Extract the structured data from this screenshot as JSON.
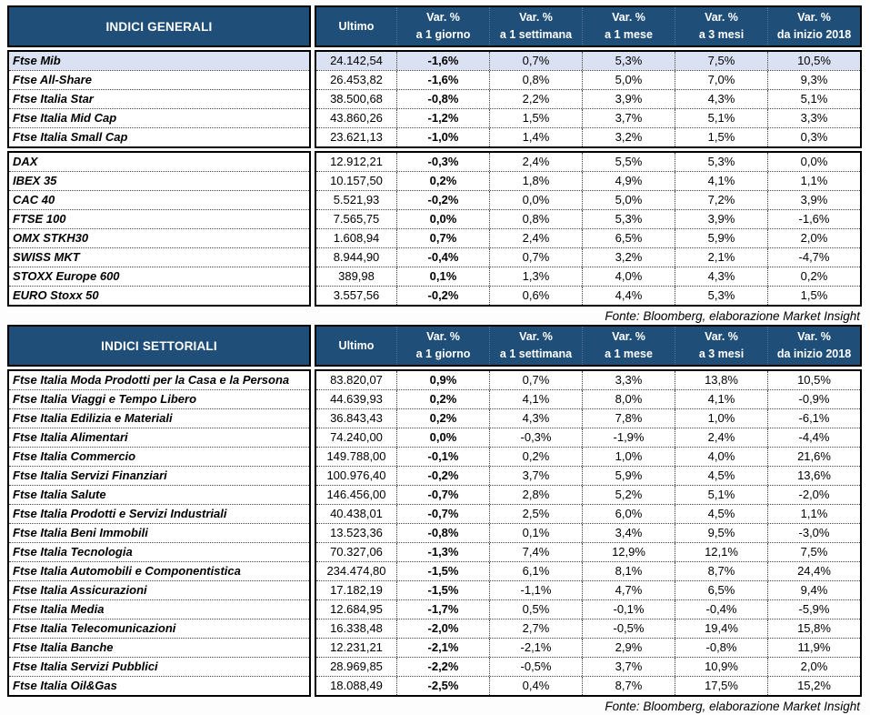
{
  "colors": {
    "header_bg": "#1F4E79",
    "header_text": "#FFFFFF",
    "highlight_row_bg": "#D9E1F2",
    "border": "#000000"
  },
  "tables": [
    {
      "title": "INDICI GENERALI",
      "source": "Fonte: Bloomberg, elaborazione Market Insight",
      "columns": [
        {
          "line1": "Ultimo",
          "line2": ""
        },
        {
          "line1": "Var. %",
          "line2": "a 1 giorno"
        },
        {
          "line1": "Var. %",
          "line2": "a 1 settimana"
        },
        {
          "line1": "Var. %",
          "line2": "a 1 mese"
        },
        {
          "line1": "Var. %",
          "line2": "a 3 mesi"
        },
        {
          "line1": "Var. %",
          "line2": "da inizio 2018"
        }
      ],
      "groups": [
        {
          "rows": [
            {
              "name": "Ftse Mib",
              "highlight": true,
              "values": [
                "24.142,54",
                "-1,6%",
                "0,7%",
                "5,3%",
                "7,5%",
                "10,5%"
              ]
            },
            {
              "name": "Ftse All-Share",
              "highlight": false,
              "values": [
                "26.453,82",
                "-1,6%",
                "0,8%",
                "5,0%",
                "7,0%",
                "9,3%"
              ]
            },
            {
              "name": "Ftse Italia Star",
              "highlight": false,
              "values": [
                "38.500,68",
                "-0,8%",
                "2,2%",
                "3,9%",
                "4,3%",
                "5,1%"
              ]
            },
            {
              "name": "Ftse Italia Mid Cap",
              "highlight": false,
              "values": [
                "43.860,26",
                "-1,2%",
                "1,5%",
                "3,7%",
                "5,1%",
                "3,3%"
              ]
            },
            {
              "name": "Ftse Italia Small Cap",
              "highlight": false,
              "values": [
                "23.621,13",
                "-1,0%",
                "1,4%",
                "3,2%",
                "1,5%",
                "0,3%"
              ]
            }
          ]
        },
        {
          "rows": [
            {
              "name": "DAX",
              "highlight": false,
              "values": [
                "12.912,21",
                "-0,3%",
                "2,4%",
                "5,5%",
                "5,3%",
                "0,0%"
              ]
            },
            {
              "name": "IBEX 35",
              "highlight": false,
              "values": [
                "10.157,50",
                "0,2%",
                "1,8%",
                "4,9%",
                "4,1%",
                "1,1%"
              ]
            },
            {
              "name": "CAC 40",
              "highlight": false,
              "values": [
                "5.521,93",
                "-0,2%",
                "0,0%",
                "5,0%",
                "7,2%",
                "3,9%"
              ]
            },
            {
              "name": "FTSE 100",
              "highlight": false,
              "values": [
                "7.565,75",
                "0,0%",
                "0,8%",
                "5,3%",
                "3,9%",
                "-1,6%"
              ]
            },
            {
              "name": "OMX STKH30",
              "highlight": false,
              "values": [
                "1.608,94",
                "0,7%",
                "2,4%",
                "6,5%",
                "5,9%",
                "2,0%"
              ]
            },
            {
              "name": "SWISS MKT",
              "highlight": false,
              "values": [
                "8.944,90",
                "-0,4%",
                "0,7%",
                "3,2%",
                "2,1%",
                "-4,7%"
              ]
            },
            {
              "name": "STOXX Europe 600",
              "highlight": false,
              "values": [
                "389,98",
                "0,1%",
                "1,3%",
                "4,0%",
                "4,3%",
                "0,2%"
              ]
            },
            {
              "name": "EURO Stoxx 50",
              "highlight": false,
              "values": [
                "3.557,56",
                "-0,2%",
                "0,6%",
                "4,4%",
                "5,3%",
                "1,5%"
              ]
            }
          ]
        }
      ]
    },
    {
      "title": "INDICI SETTORIALI",
      "source": "Fonte: Bloomberg, elaborazione Market Insight",
      "columns": [
        {
          "line1": "Ultimo",
          "line2": ""
        },
        {
          "line1": "Var. %",
          "line2": "a 1 giorno"
        },
        {
          "line1": "Var. %",
          "line2": "a 1 settimana"
        },
        {
          "line1": "Var. %",
          "line2": "a 1 mese"
        },
        {
          "line1": "Var. %",
          "line2": "a 3 mesi"
        },
        {
          "line1": "Var. %",
          "line2": "da inizio 2018"
        }
      ],
      "groups": [
        {
          "rows": [
            {
              "name": "Ftse Italia Moda Prodotti per la Casa e la Persona",
              "highlight": false,
              "values": [
                "83.820,07",
                "0,9%",
                "0,7%",
                "3,3%",
                "13,8%",
                "10,5%"
              ]
            },
            {
              "name": "Ftse Italia Viaggi e Tempo Libero",
              "highlight": false,
              "values": [
                "44.639,93",
                "0,2%",
                "4,1%",
                "8,0%",
                "4,1%",
                "-0,9%"
              ]
            },
            {
              "name": "Ftse Italia Edilizia e Materiali",
              "highlight": false,
              "values": [
                "36.843,43",
                "0,2%",
                "4,3%",
                "7,8%",
                "1,0%",
                "-6,1%"
              ]
            },
            {
              "name": "Ftse Italia Alimentari",
              "highlight": false,
              "values": [
                "74.240,00",
                "0,0%",
                "-0,3%",
                "-1,9%",
                "2,4%",
                "-4,4%"
              ]
            },
            {
              "name": "Ftse Italia Commercio",
              "highlight": false,
              "values": [
                "149.788,00",
                "-0,1%",
                "0,2%",
                "1,0%",
                "4,0%",
                "21,6%"
              ]
            },
            {
              "name": "Ftse Italia Servizi Finanziari",
              "highlight": false,
              "values": [
                "100.976,40",
                "-0,2%",
                "3,7%",
                "5,9%",
                "4,5%",
                "13,6%"
              ]
            },
            {
              "name": "Ftse Italia Salute",
              "highlight": false,
              "values": [
                "146.456,00",
                "-0,7%",
                "2,8%",
                "5,2%",
                "5,1%",
                "-2,0%"
              ]
            },
            {
              "name": "Ftse Italia Prodotti e Servizi Industriali",
              "highlight": false,
              "values": [
                "40.438,01",
                "-0,7%",
                "2,5%",
                "6,0%",
                "4,5%",
                "1,1%"
              ]
            },
            {
              "name": "Ftse Italia Beni Immobili",
              "highlight": false,
              "values": [
                "13.523,36",
                "-0,8%",
                "0,1%",
                "3,4%",
                "9,5%",
                "-3,0%"
              ]
            },
            {
              "name": "Ftse Italia Tecnologia",
              "highlight": false,
              "values": [
                "70.327,06",
                "-1,3%",
                "7,4%",
                "12,9%",
                "12,1%",
                "7,5%"
              ]
            },
            {
              "name": "Ftse Italia Automobili e Componentistica",
              "highlight": false,
              "values": [
                "234.474,80",
                "-1,5%",
                "6,1%",
                "8,1%",
                "8,7%",
                "24,4%"
              ]
            },
            {
              "name": "Ftse Italia Assicurazioni",
              "highlight": false,
              "values": [
                "17.182,19",
                "-1,5%",
                "-1,1%",
                "4,7%",
                "6,5%",
                "9,4%"
              ]
            },
            {
              "name": "Ftse Italia Media",
              "highlight": false,
              "values": [
                "12.684,95",
                "-1,7%",
                "0,5%",
                "-0,1%",
                "-0,4%",
                "-5,9%"
              ]
            },
            {
              "name": "Ftse Italia Telecomunicazioni",
              "highlight": false,
              "values": [
                "16.338,48",
                "-2,0%",
                "2,7%",
                "-0,5%",
                "19,4%",
                "15,8%"
              ]
            },
            {
              "name": "Ftse Italia Banche",
              "highlight": false,
              "values": [
                "12.231,21",
                "-2,1%",
                "-2,1%",
                "2,9%",
                "-0,8%",
                "11,9%"
              ]
            },
            {
              "name": "Ftse Italia Servizi Pubblici",
              "highlight": false,
              "values": [
                "28.969,85",
                "-2,2%",
                "-0,5%",
                "3,7%",
                "10,9%",
                "2,0%"
              ]
            },
            {
              "name": "Ftse Italia Oil&Gas",
              "highlight": false,
              "values": [
                "18.088,49",
                "-2,5%",
                "0,4%",
                "8,7%",
                "17,5%",
                "15,2%"
              ]
            }
          ]
        }
      ]
    }
  ]
}
